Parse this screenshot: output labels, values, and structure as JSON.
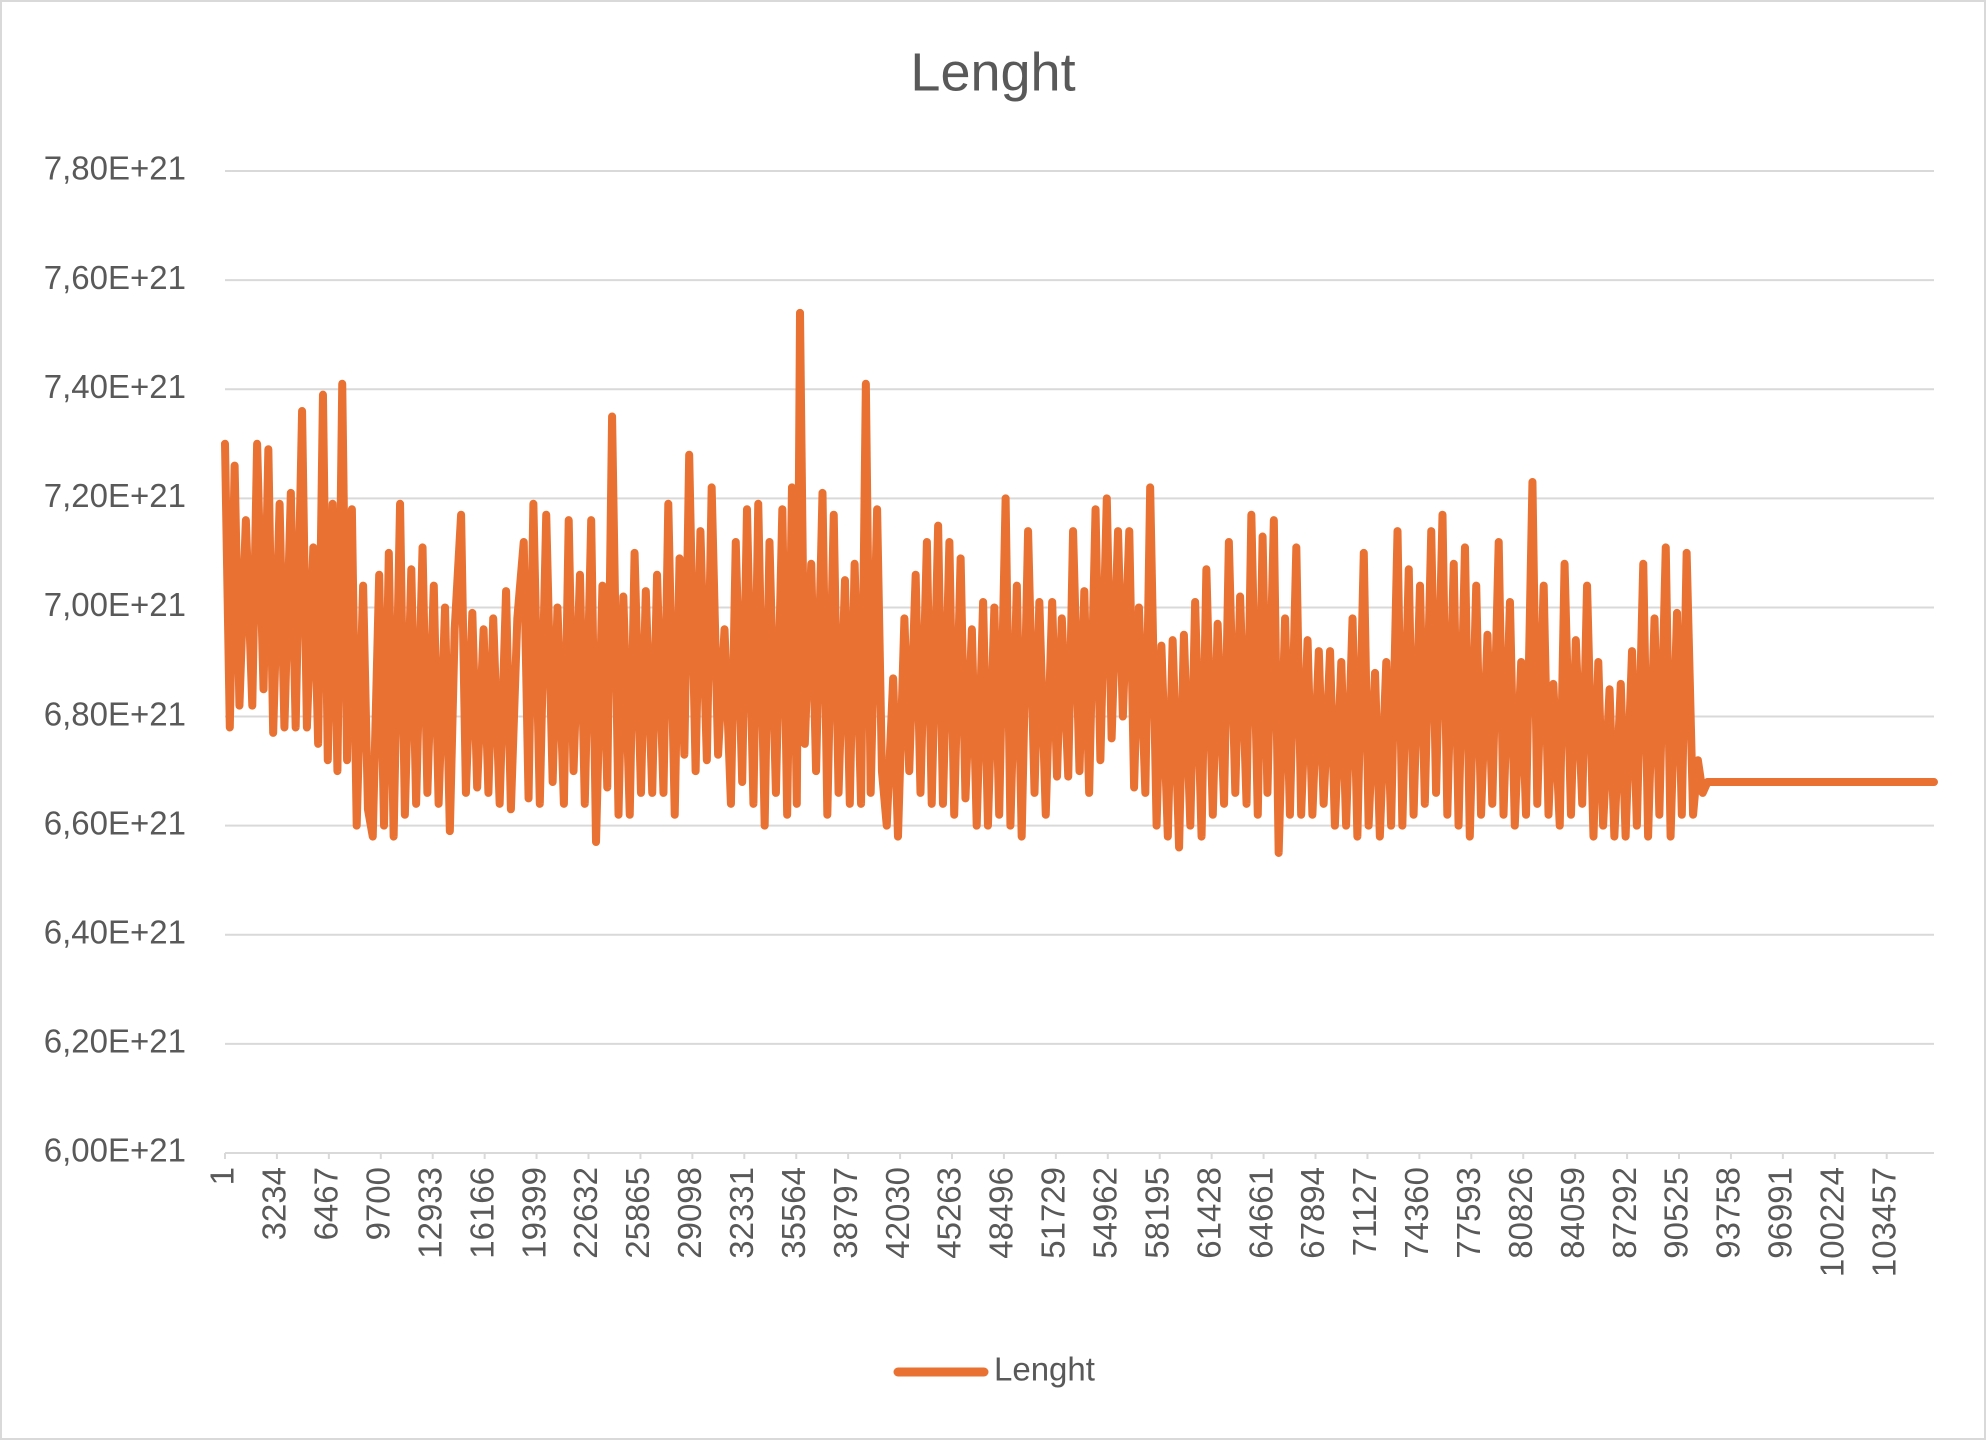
{
  "chart_data": {
    "type": "line",
    "title": "Lenght",
    "x": [
      1,
      300,
      600,
      900,
      1300,
      1700,
      2000,
      2400,
      2700,
      3000,
      3400,
      3700,
      4100,
      4400,
      4800,
      5100,
      5500,
      5800,
      6100,
      6400,
      6700,
      7000,
      7300,
      7600,
      7900,
      8200,
      8600,
      8900,
      9200,
      9600,
      9900,
      10200,
      10500,
      10900,
      11200,
      11600,
      11900,
      12300,
      12600,
      13000,
      13300,
      13700,
      14000,
      14300,
      14700,
      15000,
      15400,
      15700,
      16100,
      16400,
      16700,
      17100,
      17500,
      17800,
      18200,
      18600,
      18900,
      19200,
      19600,
      20000,
      20400,
      20700,
      21100,
      21400,
      21700,
      22100,
      22400,
      22800,
      23100,
      23500,
      23800,
      24100,
      24500,
      24800,
      25200,
      25500,
      25900,
      26200,
      26600,
      26900,
      27300,
      27600,
      28000,
      28300,
      28600,
      28900,
      29300,
      29600,
      30000,
      30300,
      30700,
      31100,
      31500,
      31800,
      32200,
      32500,
      32900,
      33200,
      33600,
      33900,
      34300,
      34700,
      35000,
      35300,
      35600,
      35800,
      36100,
      36500,
      36800,
      37200,
      37500,
      37900,
      38200,
      38600,
      38900,
      39200,
      39600,
      39900,
      40200,
      40600,
      40900,
      41200,
      41600,
      41900,
      42300,
      42600,
      43000,
      43300,
      43700,
      44000,
      44400,
      44700,
      45100,
      45400,
      45800,
      46100,
      46500,
      46800,
      47200,
      47500,
      47900,
      48200,
      48600,
      48900,
      49300,
      49600,
      50000,
      50400,
      50700,
      51100,
      51500,
      51800,
      52100,
      52500,
      52800,
      53200,
      53500,
      53800,
      54200,
      54500,
      54900,
      55200,
      55600,
      55900,
      56300,
      56600,
      56900,
      57300,
      57600,
      58000,
      58300,
      58700,
      59000,
      59400,
      59700,
      60100,
      60400,
      60800,
      61100,
      61500,
      61800,
      62200,
      62500,
      62900,
      63200,
      63600,
      63900,
      64300,
      64600,
      64900,
      65300,
      65600,
      66000,
      66300,
      66700,
      67000,
      67400,
      67700,
      68100,
      68400,
      68800,
      69100,
      69500,
      69800,
      70200,
      70500,
      70900,
      71200,
      71600,
      71900,
      72300,
      72600,
      73000,
      73300,
      73700,
      74000,
      74400,
      74700,
      75100,
      75400,
      75800,
      76100,
      76500,
      76800,
      77200,
      77500,
      77900,
      78200,
      78600,
      78900,
      79300,
      79600,
      80000,
      80300,
      80700,
      81000,
      81400,
      81700,
      82100,
      82400,
      82700,
      83100,
      83400,
      83800,
      84100,
      84500,
      84800,
      85200,
      85500,
      85800,
      86200,
      86500,
      86900,
      87200,
      87600,
      87900,
      88300,
      88600,
      89000,
      89300,
      89700,
      90000,
      90400,
      90700,
      91000,
      91400,
      91700,
      92000,
      92300,
      106400
    ],
    "series": [
      {
        "name": "Lenght",
        "color": "#e97132",
        "values": [
          7.3e+21,
          6.78e+21,
          7.26e+21,
          6.82e+21,
          7.16e+21,
          6.82e+21,
          7.3e+21,
          6.85e+21,
          7.29e+21,
          6.77e+21,
          7.19e+21,
          6.78e+21,
          7.21e+21,
          6.78e+21,
          7.36e+21,
          6.78e+21,
          7.11e+21,
          6.75e+21,
          7.39e+21,
          6.72e+21,
          7.19e+21,
          6.7e+21,
          7.41e+21,
          6.72e+21,
          7.18e+21,
          6.6e+21,
          7.04e+21,
          6.63e+21,
          6.58e+21,
          7.06e+21,
          6.6e+21,
          7.1e+21,
          6.58e+21,
          7.19e+21,
          6.62e+21,
          7.07e+21,
          6.64e+21,
          7.11e+21,
          6.66e+21,
          7.04e+21,
          6.64e+21,
          7e+21,
          6.59e+21,
          6.96e+21,
          7.17e+21,
          6.66e+21,
          6.99e+21,
          6.67e+21,
          6.96e+21,
          6.66e+21,
          6.98e+21,
          6.64e+21,
          7.03e+21,
          6.63e+21,
          6.98e+21,
          7.12e+21,
          6.65e+21,
          7.19e+21,
          6.64e+21,
          7.17e+21,
          6.68e+21,
          7e+21,
          6.64e+21,
          7.16e+21,
          6.7e+21,
          7.06e+21,
          6.64e+21,
          7.16e+21,
          6.57e+21,
          7.04e+21,
          6.67e+21,
          7.35e+21,
          6.62e+21,
          7.02e+21,
          6.62e+21,
          7.1e+21,
          6.66e+21,
          7.03e+21,
          6.66e+21,
          7.06e+21,
          6.66e+21,
          7.19e+21,
          6.62e+21,
          7.09e+21,
          6.73e+21,
          7.28e+21,
          6.7e+21,
          7.14e+21,
          6.72e+21,
          7.22e+21,
          6.73e+21,
          6.96e+21,
          6.64e+21,
          7.12e+21,
          6.68e+21,
          7.18e+21,
          6.64e+21,
          7.19e+21,
          6.6e+21,
          7.12e+21,
          6.66e+21,
          7.18e+21,
          6.62e+21,
          7.22e+21,
          6.64e+21,
          7.54e+21,
          6.75e+21,
          7.08e+21,
          6.7e+21,
          7.21e+21,
          6.62e+21,
          7.17e+21,
          6.66e+21,
          7.05e+21,
          6.64e+21,
          7.08e+21,
          6.64e+21,
          7.41e+21,
          6.66e+21,
          7.18e+21,
          6.7e+21,
          6.6e+21,
          6.87e+21,
          6.58e+21,
          6.98e+21,
          6.7e+21,
          7.06e+21,
          6.66e+21,
          7.12e+21,
          6.64e+21,
          7.15e+21,
          6.64e+21,
          7.12e+21,
          6.62e+21,
          7.09e+21,
          6.65e+21,
          6.96e+21,
          6.6e+21,
          7.01e+21,
          6.6e+21,
          7e+21,
          6.62e+21,
          7.2e+21,
          6.6e+21,
          7.04e+21,
          6.58e+21,
          7.14e+21,
          6.66e+21,
          7.01e+21,
          6.62e+21,
          7.01e+21,
          6.69e+21,
          6.98e+21,
          6.69e+21,
          7.14e+21,
          6.7e+21,
          7.03e+21,
          6.66e+21,
          7.18e+21,
          6.72e+21,
          7.2e+21,
          6.76e+21,
          7.14e+21,
          6.8e+21,
          7.14e+21,
          6.67e+21,
          7e+21,
          6.66e+21,
          7.22e+21,
          6.6e+21,
          6.93e+21,
          6.58e+21,
          6.94e+21,
          6.56e+21,
          6.95e+21,
          6.6e+21,
          7.01e+21,
          6.58e+21,
          7.07e+21,
          6.62e+21,
          6.97e+21,
          6.64e+21,
          7.12e+21,
          6.66e+21,
          7.02e+21,
          6.64e+21,
          7.17e+21,
          6.62e+21,
          7.13e+21,
          6.66e+21,
          7.16e+21,
          6.55e+21,
          6.98e+21,
          6.62e+21,
          7.11e+21,
          6.62e+21,
          6.94e+21,
          6.62e+21,
          6.92e+21,
          6.64e+21,
          6.92e+21,
          6.6e+21,
          6.9e+21,
          6.6e+21,
          6.98e+21,
          6.58e+21,
          7.1e+21,
          6.6e+21,
          6.88e+21,
          6.58e+21,
          6.9e+21,
          6.6e+21,
          7.14e+21,
          6.6e+21,
          7.07e+21,
          6.62e+21,
          7.04e+21,
          6.64e+21,
          7.14e+21,
          6.66e+21,
          7.17e+21,
          6.62e+21,
          7.08e+21,
          6.6e+21,
          7.11e+21,
          6.58e+21,
          7.04e+21,
          6.62e+21,
          6.95e+21,
          6.64e+21,
          7.12e+21,
          6.62e+21,
          7.01e+21,
          6.6e+21,
          6.9e+21,
          6.62e+21,
          7.23e+21,
          6.64e+21,
          7.04e+21,
          6.62e+21,
          6.86e+21,
          6.6e+21,
          7.08e+21,
          6.62e+21,
          6.94e+21,
          6.64e+21,
          7.04e+21,
          6.58e+21,
          6.9e+21,
          6.6e+21,
          6.85e+21,
          6.58e+21,
          6.86e+21,
          6.58e+21,
          6.92e+21,
          6.6e+21,
          7.08e+21,
          6.58e+21,
          6.98e+21,
          6.62e+21,
          7.11e+21,
          6.58e+21,
          6.99e+21,
          6.62e+21,
          7.1e+21,
          6.62e+21,
          6.72e+21,
          6.66e+21,
          6.68e+21,
          6.68e+21
        ]
      }
    ],
    "xlim": [
      1,
      106400
    ],
    "xticks": [
      1,
      3234,
      6467,
      9700,
      12933,
      16166,
      19399,
      22632,
      25865,
      29098,
      32331,
      35564,
      38797,
      42030,
      45263,
      48496,
      51729,
      54962,
      58195,
      61428,
      64661,
      67894,
      71127,
      74360,
      77593,
      80826,
      84059,
      87292,
      90525,
      93758,
      96991,
      100224,
      103457
    ],
    "ylim": [
      6e+21,
      7.8e+21
    ],
    "yticks": [
      {
        "value": 6e+21,
        "label": "6,00E+21"
      },
      {
        "value": 6.2e+21,
        "label": "6,20E+21"
      },
      {
        "value": 6.4e+21,
        "label": "6,40E+21"
      },
      {
        "value": 6.6e+21,
        "label": "6,60E+21"
      },
      {
        "value": 6.8e+21,
        "label": "6,80E+21"
      },
      {
        "value": 7e+21,
        "label": "7,00E+21"
      },
      {
        "value": 7.2e+21,
        "label": "7,20E+21"
      },
      {
        "value": 7.4e+21,
        "label": "7,40E+21"
      },
      {
        "value": 7.6e+21,
        "label": "7,60E+21"
      },
      {
        "value": 7.8e+21,
        "label": "7,80E+21"
      }
    ],
    "grid": true,
    "legend": "bottom"
  }
}
